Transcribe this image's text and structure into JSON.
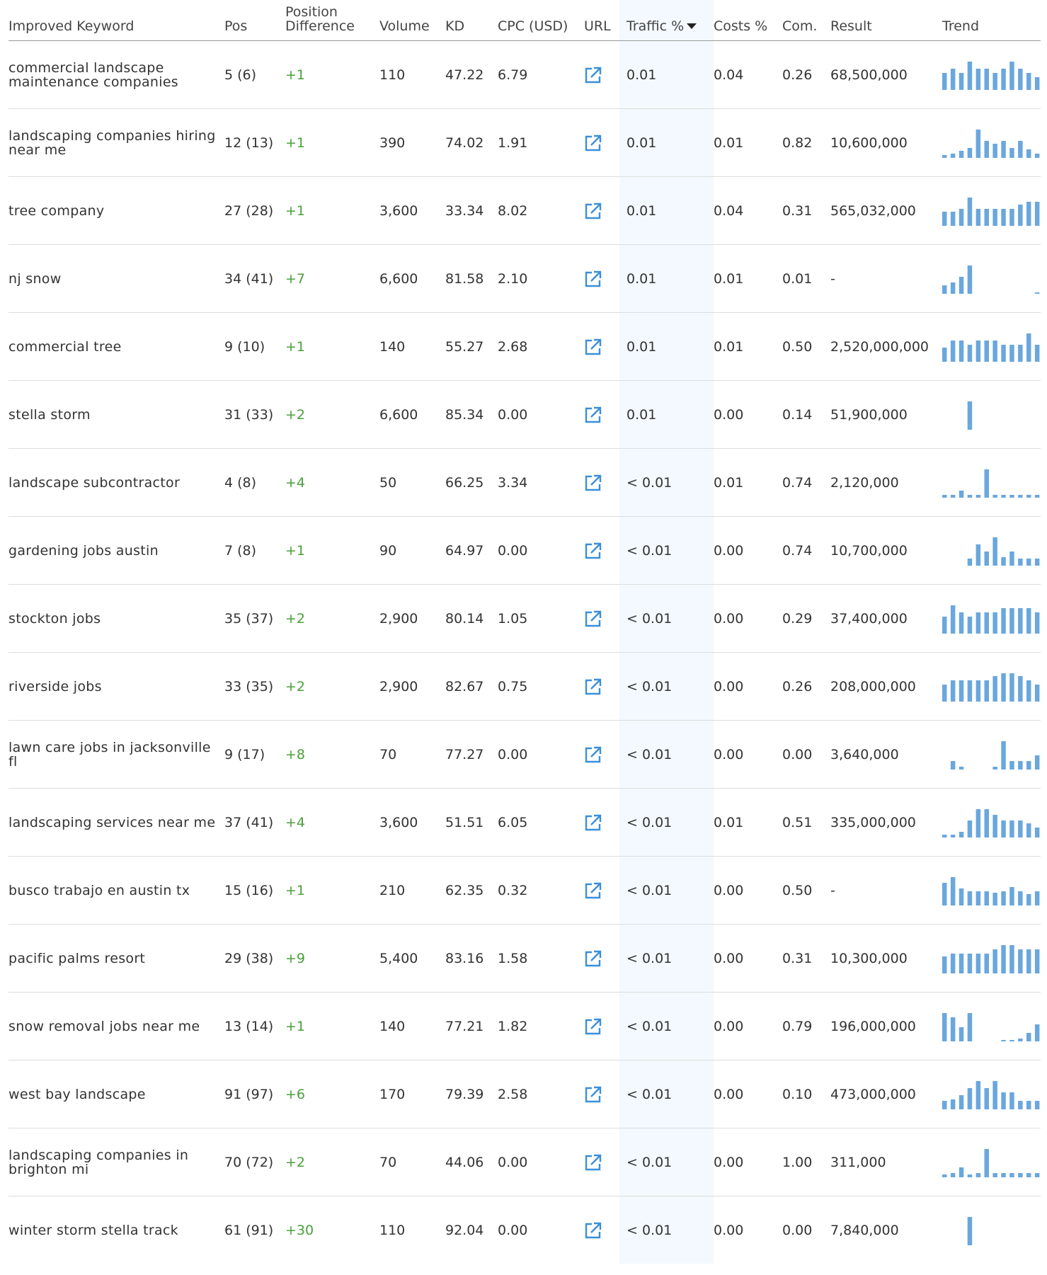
{
  "table": {
    "columns": [
      "Improved Keyword",
      "Pos",
      "Position Difference",
      "Volume",
      "KD",
      "CPC (USD)",
      "URL",
      "Traffic %",
      "Costs %",
      "Com.",
      "Result",
      "Trend"
    ],
    "rows": [
      {
        "keyword": "commercial landscape maintenance companies",
        "pos": "5 (6)",
        "diff": "+1",
        "volume": "110",
        "kd": "47.22",
        "cpc": "6.79",
        "traffic": "0.01",
        "costs": "0.04",
        "com": "0.26",
        "result": "68,500,000",
        "trend": [
          0.6,
          0.75,
          0.6,
          1,
          0.75,
          0.75,
          0.6,
          0.75,
          1,
          0.75,
          0.6,
          0.45
        ]
      },
      {
        "keyword": "landscaping companies hiring near me",
        "pos": "12 (13)",
        "diff": "+1",
        "volume": "390",
        "kd": "74.02",
        "cpc": "1.91",
        "traffic": "0.01",
        "costs": "0.01",
        "com": "0.82",
        "result": "10,600,000",
        "trend": [
          0.1,
          0.15,
          0.25,
          0.35,
          1,
          0.6,
          0.5,
          0.6,
          0.35,
          0.6,
          0.3,
          0.15
        ]
      },
      {
        "keyword": "tree company",
        "pos": "27 (28)",
        "diff": "+1",
        "volume": "3,600",
        "kd": "33.34",
        "cpc": "8.02",
        "traffic": "0.01",
        "costs": "0.04",
        "com": "0.31",
        "result": "565,032,000",
        "trend": [
          0.5,
          0.5,
          0.6,
          1,
          0.6,
          0.6,
          0.6,
          0.6,
          0.6,
          0.75,
          0.85,
          0.85
        ]
      },
      {
        "keyword": "nj snow",
        "pos": "34 (41)",
        "diff": "+7",
        "volume": "6,600",
        "kd": "81.58",
        "cpc": "2.10",
        "traffic": "0.01",
        "costs": "0.01",
        "com": "0.01",
        "result": "-",
        "trend": [
          0.3,
          0.4,
          0.6,
          1,
          null,
          null,
          null,
          null,
          null,
          null,
          null,
          0.05
        ]
      },
      {
        "keyword": "commercial tree",
        "pos": "9 (10)",
        "diff": "+1",
        "volume": "140",
        "kd": "55.27",
        "cpc": "2.68",
        "traffic": "0.01",
        "costs": "0.01",
        "com": "0.50",
        "result": "2,520,000,000",
        "trend": [
          0.5,
          0.75,
          0.75,
          0.6,
          0.75,
          0.75,
          0.75,
          0.6,
          0.6,
          0.6,
          1,
          0.6
        ]
      },
      {
        "keyword": "stella storm",
        "pos": "31 (33)",
        "diff": "+2",
        "volume": "6,600",
        "kd": "85.34",
        "cpc": "0.00",
        "traffic": "0.01",
        "costs": "0.00",
        "com": "0.14",
        "result": "51,900,000",
        "trend": [
          null,
          null,
          null,
          1,
          null,
          null,
          null,
          null,
          null,
          null,
          null,
          null
        ]
      },
      {
        "keyword": "landscape subcontractor",
        "pos": "4 (8)",
        "diff": "+4",
        "volume": "50",
        "kd": "66.25",
        "cpc": "3.34",
        "traffic": "< 0.01",
        "costs": "0.01",
        "com": "0.74",
        "result": "2,120,000",
        "trend": [
          0.1,
          0.1,
          0.25,
          0.1,
          0.1,
          1,
          0.1,
          0.1,
          0.1,
          0.1,
          0.1,
          0.1
        ]
      },
      {
        "keyword": "gardening jobs austin",
        "pos": "7 (8)",
        "diff": "+1",
        "volume": "90",
        "kd": "64.97",
        "cpc": "0.00",
        "traffic": "< 0.01",
        "costs": "0.00",
        "com": "0.74",
        "result": "10,700,000",
        "trend": [
          null,
          null,
          null,
          0.25,
          0.75,
          0.5,
          1,
          0.3,
          0.5,
          0.25,
          0.25,
          0.25
        ]
      },
      {
        "keyword": "stockton jobs",
        "pos": "35 (37)",
        "diff": "+2",
        "volume": "2,900",
        "kd": "80.14",
        "cpc": "1.05",
        "traffic": "< 0.01",
        "costs": "0.00",
        "com": "0.29",
        "result": "37,400,000",
        "trend": [
          0.6,
          1,
          0.75,
          0.6,
          0.75,
          0.75,
          0.75,
          0.9,
          0.9,
          0.9,
          0.9,
          0.75
        ]
      },
      {
        "keyword": "riverside jobs",
        "pos": "33 (35)",
        "diff": "+2",
        "volume": "2,900",
        "kd": "82.67",
        "cpc": "0.75",
        "traffic": "< 0.01",
        "costs": "0.00",
        "com": "0.26",
        "result": "208,000,000",
        "trend": [
          0.6,
          0.75,
          0.75,
          0.75,
          0.75,
          0.75,
          0.9,
          1,
          1,
          0.9,
          0.75,
          0.6
        ]
      },
      {
        "keyword": "lawn care jobs in jacksonville fl",
        "pos": "9 (17)",
        "diff": "+8",
        "volume": "70",
        "kd": "77.27",
        "cpc": "0.00",
        "traffic": "< 0.01",
        "costs": "0.00",
        "com": "0.00",
        "result": "3,640,000",
        "trend": [
          null,
          0.3,
          0.1,
          null,
          null,
          null,
          0.1,
          1,
          0.3,
          0.3,
          0.3,
          0.5
        ]
      },
      {
        "keyword": "landscaping services near me",
        "pos": "37 (41)",
        "diff": "+4",
        "volume": "3,600",
        "kd": "51.51",
        "cpc": "6.05",
        "traffic": "< 0.01",
        "costs": "0.01",
        "com": "0.51",
        "result": "335,000,000",
        "trend": [
          0.1,
          0.1,
          0.2,
          0.6,
          1,
          1,
          0.8,
          0.6,
          0.6,
          0.6,
          0.5,
          0.35
        ]
      },
      {
        "keyword": "busco trabajo en austin tx",
        "pos": "15 (16)",
        "diff": "+1",
        "volume": "210",
        "kd": "62.35",
        "cpc": "0.32",
        "traffic": "< 0.01",
        "costs": "0.00",
        "com": "0.50",
        "result": "-",
        "trend": [
          0.8,
          1,
          0.6,
          0.5,
          0.5,
          0.5,
          0.45,
          0.5,
          0.65,
          0.5,
          0.4,
          0.5
        ]
      },
      {
        "keyword": "pacific palms resort",
        "pos": "29 (38)",
        "diff": "+9",
        "volume": "5,400",
        "kd": "83.16",
        "cpc": "1.58",
        "traffic": "< 0.01",
        "costs": "0.00",
        "com": "0.31",
        "result": "10,300,000",
        "trend": [
          0.6,
          0.7,
          0.7,
          0.7,
          0.7,
          0.7,
          0.85,
          1,
          1,
          0.85,
          0.85,
          0.85
        ]
      },
      {
        "keyword": "snow removal jobs near me",
        "pos": "13 (14)",
        "diff": "+1",
        "volume": "140",
        "kd": "77.21",
        "cpc": "1.82",
        "traffic": "< 0.01",
        "costs": "0.00",
        "com": "0.79",
        "result": "196,000,000",
        "trend": [
          1,
          0.85,
          0.5,
          1,
          null,
          null,
          null,
          0.05,
          0.05,
          0.1,
          0.3,
          0.6
        ]
      },
      {
        "keyword": "west bay landscape",
        "pos": "91 (97)",
        "diff": "+6",
        "volume": "170",
        "kd": "79.39",
        "cpc": "2.58",
        "traffic": "< 0.01",
        "costs": "0.00",
        "com": "0.10",
        "result": "473,000,000",
        "trend": [
          0.3,
          0.35,
          0.5,
          0.75,
          1,
          0.75,
          1,
          0.6,
          0.6,
          0.3,
          0.3,
          0.3
        ]
      },
      {
        "keyword": "landscaping companies in brighton mi",
        "pos": "70 (72)",
        "diff": "+2",
        "volume": "70",
        "kd": "44.06",
        "cpc": "0.00",
        "traffic": "< 0.01",
        "costs": "0.00",
        "com": "1.00",
        "result": "311,000",
        "trend": [
          0.1,
          0.15,
          0.35,
          0.1,
          0.15,
          1,
          0.15,
          0.15,
          0.15,
          0.15,
          0.15,
          0.15
        ]
      },
      {
        "keyword": "winter storm stella track",
        "pos": "61 (91)",
        "diff": "+30",
        "volume": "110",
        "kd": "92.04",
        "cpc": "0.00",
        "traffic": "< 0.01",
        "costs": "0.00",
        "com": "0.00",
        "result": "7,840,000",
        "trend": [
          null,
          null,
          null,
          1,
          null,
          null,
          null,
          null,
          null,
          null,
          null,
          null
        ]
      }
    ]
  }
}
